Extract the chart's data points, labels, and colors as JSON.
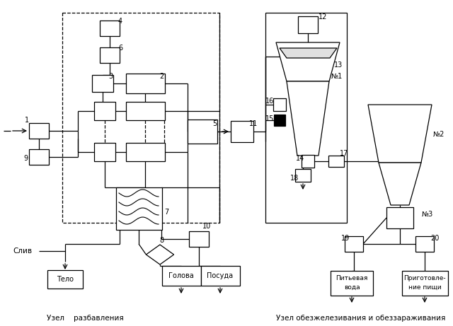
{
  "bg_color": "#ffffff",
  "node1_label": "Узел    разбавления",
  "node2_label": "Узел обезжелезивания и обеззараживания",
  "sliv_label": "Слив",
  "fs": 7.0
}
